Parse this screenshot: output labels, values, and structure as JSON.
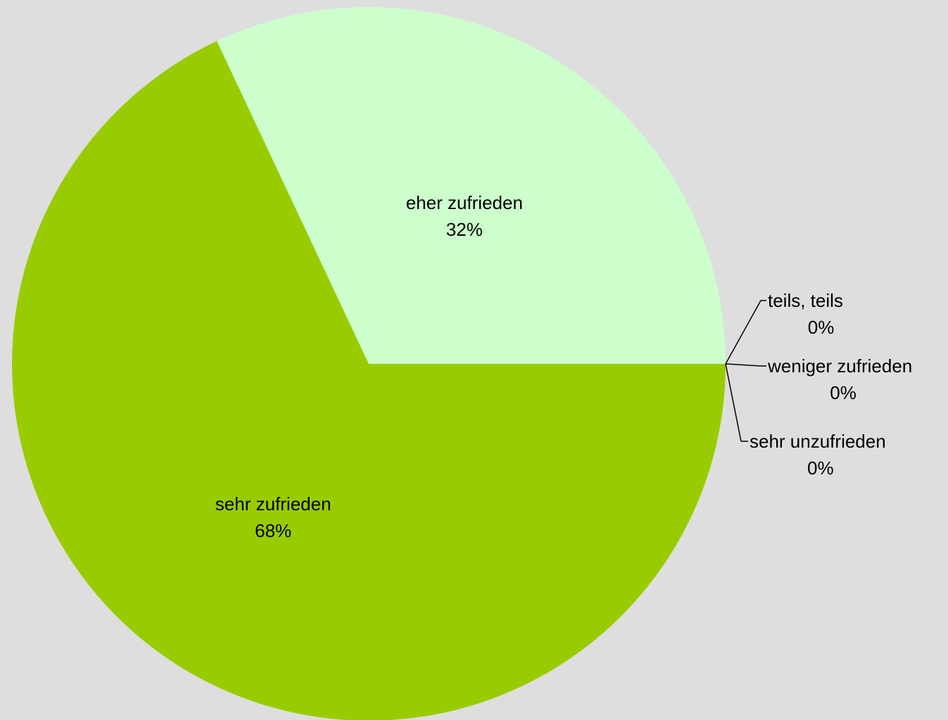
{
  "chart_data": {
    "type": "pie",
    "categories": [
      "sehr zufrieden",
      "eher zufrieden",
      "teils, teils",
      "weniger zufrieden",
      "sehr unzufrieden"
    ],
    "values": [
      68,
      32,
      0,
      0,
      0
    ],
    "value_labels": [
      "68%",
      "32%",
      "0%",
      "0%",
      "0%"
    ],
    "colors": [
      "#99cc00",
      "#ccffcc",
      "#99cc00",
      "#99cc00",
      "#99cc00"
    ],
    "background": "#dedede",
    "legend": "none",
    "data_labels": "category and percent"
  }
}
